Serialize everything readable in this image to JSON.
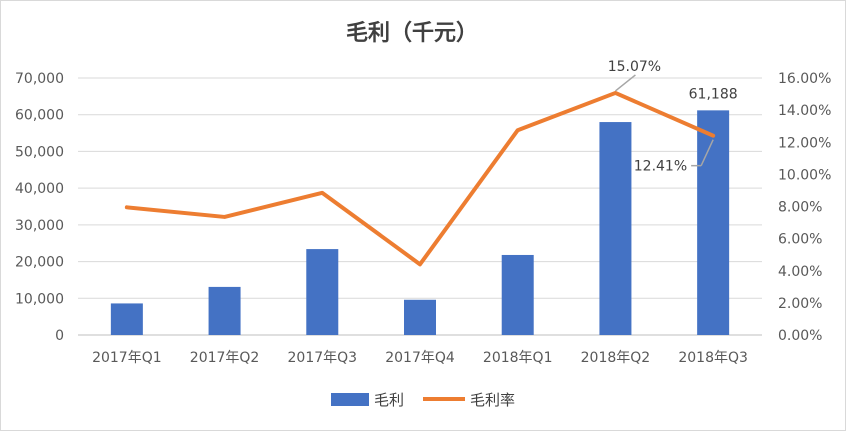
{
  "chart_data": {
    "type": "bar",
    "title": "毛利（千元）",
    "categories": [
      "2017年Q1",
      "2017年Q2",
      "2017年Q3",
      "2017年Q4",
      "2018年Q1",
      "2018年Q2",
      "2018年Q3"
    ],
    "series": [
      {
        "name": "毛利",
        "type": "bar",
        "axis": "left",
        "color": "#4472C4",
        "values": [
          8600,
          13100,
          23400,
          9600,
          21800,
          58000,
          61188
        ]
      },
      {
        "name": "毛利率",
        "type": "line",
        "axis": "right",
        "color": "#ED7D31",
        "values": [
          0.0795,
          0.0735,
          0.0885,
          0.044,
          0.1275,
          0.1507,
          0.1241
        ]
      }
    ],
    "y_left": {
      "min": 0,
      "max": 70000,
      "ticks": [
        0,
        10000,
        20000,
        30000,
        40000,
        50000,
        60000,
        70000
      ],
      "tick_labels": [
        "0",
        "10,000",
        "20,000",
        "30,000",
        "40,000",
        "50,000",
        "60,000",
        "70,000"
      ]
    },
    "y_right": {
      "min": 0,
      "max": 0.16,
      "ticks": [
        0,
        0.02,
        0.04,
        0.06,
        0.08,
        0.1,
        0.12,
        0.14,
        0.16
      ],
      "tick_labels": [
        "0.00%",
        "2.00%",
        "4.00%",
        "6.00%",
        "8.00%",
        "10.00%",
        "12.00%",
        "14.00%",
        "16.00%"
      ]
    },
    "data_labels": [
      {
        "series": "毛利率",
        "category": "2018年Q2",
        "text": "15.07%"
      },
      {
        "series": "毛利率",
        "category": "2018年Q3",
        "text": "12.41%"
      },
      {
        "series": "毛利",
        "category": "2018年Q3",
        "text": "61,188"
      }
    ],
    "grid": true,
    "legend_position": "bottom"
  }
}
